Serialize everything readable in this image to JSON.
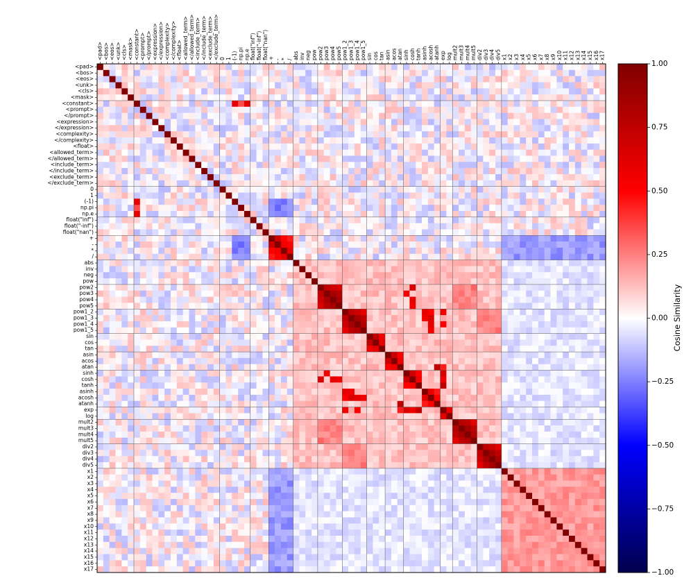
{
  "chart_data": {
    "type": "heatmap",
    "title": "",
    "xlabel": "",
    "ylabel": "",
    "colorbar": {
      "label": "Cosine Similarity",
      "ticks": [
        "1.00",
        "0.75",
        "0.50",
        "0.25",
        "0.00",
        "−0.25",
        "−0.50",
        "−0.75",
        "−1.00"
      ],
      "range": [
        -1,
        1
      ],
      "colormap": "seismic",
      "color_stops": [
        "#00004d",
        "#0000ff",
        "#ffffff",
        "#ff0000",
        "#800000"
      ]
    },
    "tokens": [
      "<pad>",
      "<bos>",
      "<eos>",
      "<unk>",
      "<cls>",
      "<mask>",
      "<constant>",
      "<prompt>",
      "</prompt>",
      "<expression>",
      "</expression>",
      "<complexity>",
      "</complexity>",
      "<float>",
      "<allowed_term>",
      "</allowed_term>",
      "<include_term>",
      "</include_term>",
      "<exclude_term>",
      "</exclude_term>",
      "0",
      "1",
      "(-1)",
      "np.pi",
      "np.e",
      "float(\"inf\")",
      "float(\"-inf\")",
      "float(\"nan\")",
      "+",
      "-",
      "*",
      "/",
      "abs",
      "inv",
      "neg",
      "pow",
      "pow2",
      "pow3",
      "pow4",
      "pow5",
      "pow1_2",
      "pow1_3",
      "pow1_4",
      "pow1_5",
      "sin",
      "cos",
      "tan",
      "asin",
      "acos",
      "atan",
      "sinh",
      "cosh",
      "tanh",
      "asinh",
      "acosh",
      "atanh",
      "exp",
      "log",
      "mult2",
      "mult3",
      "mult4",
      "mult5",
      "div2",
      "div3",
      "div4",
      "div5",
      "x1",
      "x2",
      "x3",
      "x4",
      "x5",
      "x6",
      "x7",
      "x8",
      "x9",
      "x10",
      "x11",
      "x12",
      "x13",
      "x14",
      "x15",
      "x16",
      "x17"
    ],
    "group_boundaries": [
      6,
      20,
      25,
      28,
      32,
      36,
      40,
      44,
      47,
      50,
      56,
      58,
      62,
      66
    ],
    "diagonal": 1.0,
    "strong_pairs": [
      {
        "a": "<constant>",
        "b": "(-1)",
        "value": 0.6
      },
      {
        "a": "<constant>",
        "b": "np.pi",
        "value": 0.35
      },
      {
        "a": "<constant>",
        "b": "np.e",
        "value": 0.6
      },
      {
        "a": "+",
        "b": "-",
        "value": 0.7
      },
      {
        "a": "+",
        "b": "*",
        "value": 0.5
      },
      {
        "a": "+",
        "b": "/",
        "value": 0.45
      },
      {
        "a": "-",
        "b": "*",
        "value": 0.55
      },
      {
        "a": "-",
        "b": "/",
        "value": 0.5
      },
      {
        "a": "*",
        "b": "/",
        "value": 0.6
      },
      {
        "a": "pow2",
        "b": "pow3",
        "value": 0.75
      },
      {
        "a": "pow2",
        "b": "pow4",
        "value": 0.7
      },
      {
        "a": "pow2",
        "b": "pow5",
        "value": 0.65
      },
      {
        "a": "pow3",
        "b": "pow4",
        "value": 0.85
      },
      {
        "a": "pow3",
        "b": "pow5",
        "value": 0.8
      },
      {
        "a": "pow4",
        "b": "pow5",
        "value": 0.85
      },
      {
        "a": "pow1_2",
        "b": "pow1_3",
        "value": 0.75
      },
      {
        "a": "pow1_2",
        "b": "pow1_4",
        "value": 0.7
      },
      {
        "a": "pow1_2",
        "b": "pow1_5",
        "value": 0.6
      },
      {
        "a": "pow1_3",
        "b": "pow1_4",
        "value": 0.85
      },
      {
        "a": "pow1_3",
        "b": "pow1_5",
        "value": 0.75
      },
      {
        "a": "pow1_4",
        "b": "pow1_5",
        "value": 0.8
      },
      {
        "a": "sin",
        "b": "cos",
        "value": 0.75
      },
      {
        "a": "sin",
        "b": "tan",
        "value": 0.55
      },
      {
        "a": "cos",
        "b": "tan",
        "value": 0.6
      },
      {
        "a": "asin",
        "b": "acos",
        "value": 0.7
      },
      {
        "a": "asin",
        "b": "atan",
        "value": 0.5
      },
      {
        "a": "acos",
        "b": "atan",
        "value": 0.55
      },
      {
        "a": "atan",
        "b": "atanh",
        "value": 0.75
      },
      {
        "a": "sinh",
        "b": "cosh",
        "value": 0.7
      },
      {
        "a": "sinh",
        "b": "tanh",
        "value": 0.5
      },
      {
        "a": "cosh",
        "b": "tanh",
        "value": 0.55
      },
      {
        "a": "asinh",
        "b": "acosh",
        "value": 0.6
      },
      {
        "a": "asinh",
        "b": "atanh",
        "value": 0.45
      },
      {
        "a": "acosh",
        "b": "atanh",
        "value": 0.5
      },
      {
        "a": "pow2",
        "b": "cosh",
        "value": 0.65
      },
      {
        "a": "pow3",
        "b": "sinh",
        "value": 0.55
      },
      {
        "a": "pow4",
        "b": "cosh",
        "value": 0.6
      },
      {
        "a": "pow5",
        "b": "cosh",
        "value": 0.55
      },
      {
        "a": "pow1_2",
        "b": "asinh",
        "value": 0.6
      },
      {
        "a": "pow1_3",
        "b": "asinh",
        "value": 0.55
      },
      {
        "a": "pow1_3",
        "b": "acosh",
        "value": 0.65
      },
      {
        "a": "pow1_2",
        "b": "acosh",
        "value": 0.5
      },
      {
        "a": "pow1_4",
        "b": "acosh",
        "value": 0.6
      },
      {
        "a": "pow1_5",
        "b": "acosh",
        "value": 0.55
      },
      {
        "a": "pow1_2",
        "b": "exp",
        "value": 0.55
      },
      {
        "a": "pow1_4",
        "b": "exp",
        "value": 0.5
      },
      {
        "a": "tanh",
        "b": "exp",
        "value": 0.75
      },
      {
        "a": "sinh",
        "b": "exp",
        "value": 0.65
      },
      {
        "a": "cosh",
        "b": "exp",
        "value": 0.55
      },
      {
        "a": "atan",
        "b": "exp",
        "value": 0.45
      },
      {
        "a": "exp",
        "b": "log",
        "value": 0.6
      },
      {
        "a": "mult2",
        "b": "mult3",
        "value": 0.8
      },
      {
        "a": "mult2",
        "b": "mult4",
        "value": 0.75
      },
      {
        "a": "mult2",
        "b": "mult5",
        "value": 0.6
      },
      {
        "a": "mult3",
        "b": "mult4",
        "value": 0.85
      },
      {
        "a": "mult3",
        "b": "mult5",
        "value": 0.75
      },
      {
        "a": "mult4",
        "b": "mult5",
        "value": 0.8
      },
      {
        "a": "div2",
        "b": "div3",
        "value": 0.75
      },
      {
        "a": "div2",
        "b": "div4",
        "value": 0.7
      },
      {
        "a": "div2",
        "b": "div5",
        "value": 0.6
      },
      {
        "a": "div3",
        "b": "div4",
        "value": 0.85
      },
      {
        "a": "div3",
        "b": "div5",
        "value": 0.75
      },
      {
        "a": "div4",
        "b": "div5",
        "value": 0.85
      }
    ],
    "block_baselines": [
      {
        "rows": "x1–x17",
        "cols": "x1–x17",
        "value": 0.2
      },
      {
        "rows": "abs–div5",
        "cols": "abs–div5",
        "value": 0.12
      },
      {
        "rows": "pow1_2–pow1_5",
        "cols": "div2–div5",
        "value": 0.25
      },
      {
        "rows": "pow2–pow5",
        "cols": "mult2–mult5",
        "value": 0.25
      },
      {
        "rows": "+ – /",
        "cols": "x1–x17",
        "value": -0.2
      },
      {
        "rows": "(-1)–np.e",
        "cols": "+ – /",
        "value": -0.25
      },
      {
        "rows": "abs–div5",
        "cols": "x1–x17",
        "value": -0.05
      }
    ]
  }
}
